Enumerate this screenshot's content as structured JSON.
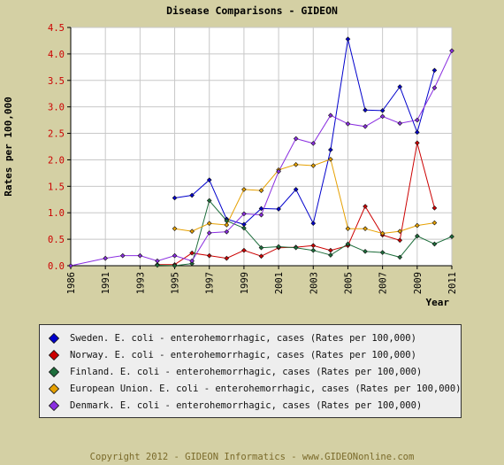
{
  "chart_data": {
    "type": "line",
    "title": "Disease Comparisons - GIDEON",
    "xlabel": "Year",
    "ylabel": "Rates per 100,000",
    "xlim": [
      1986,
      2011
    ],
    "ylim": [
      0,
      4.5
    ],
    "x_ticks": [
      "1986",
      "1991",
      "1993",
      "1995",
      "1997",
      "1999",
      "2001",
      "2003",
      "2005",
      "2007",
      "2009",
      "2011"
    ],
    "y_ticks": [
      "0.0",
      "0.5",
      "1.0",
      "1.5",
      "2.0",
      "2.5",
      "3.0",
      "3.5",
      "4.0",
      "4.5"
    ],
    "grid": true,
    "legend_position": "bottom",
    "series": [
      {
        "name": "Sweden. E. coli - enterohemorrhagic, cases (Rates per 100,000)",
        "color": "#0000cc",
        "points": [
          [
            1995,
            1.28
          ],
          [
            1996,
            1.33
          ],
          [
            1997,
            1.62
          ],
          [
            1998,
            0.88
          ],
          [
            1999,
            0.78
          ],
          [
            2000,
            1.08
          ],
          [
            2001,
            1.07
          ],
          [
            2002,
            1.44
          ],
          [
            2003,
            0.8
          ],
          [
            2004,
            2.19
          ],
          [
            2005,
            4.28
          ],
          [
            2006,
            2.94
          ],
          [
            2007,
            2.93
          ],
          [
            2008,
            3.38
          ],
          [
            2009,
            2.52
          ],
          [
            2010,
            3.69
          ]
        ]
      },
      {
        "name": "Norway. E. coli - enterohemorrhagic, cases (Rates per 100,000)",
        "color": "#cc0000",
        "points": [
          [
            1994,
            0.02
          ],
          [
            1995,
            0.02
          ],
          [
            1996,
            0.24
          ],
          [
            1997,
            0.19
          ],
          [
            1998,
            0.14
          ],
          [
            1999,
            0.29
          ],
          [
            2000,
            0.18
          ],
          [
            2001,
            0.34
          ],
          [
            2002,
            0.35
          ],
          [
            2003,
            0.38
          ],
          [
            2004,
            0.29
          ],
          [
            2005,
            0.38
          ],
          [
            2006,
            1.12
          ],
          [
            2007,
            0.58
          ],
          [
            2008,
            0.48
          ],
          [
            2009,
            2.32
          ],
          [
            2010,
            1.09
          ]
        ]
      },
      {
        "name": "Finland. E. coli - enterohemorrhagic, cases (Rates per 100,000)",
        "color": "#1e6e3c",
        "points": [
          [
            1994,
            0.01
          ],
          [
            1995,
            0.0
          ],
          [
            1996,
            0.04
          ],
          [
            1997,
            1.23
          ],
          [
            1998,
            0.85
          ],
          [
            1999,
            0.71
          ],
          [
            2000,
            0.34
          ],
          [
            2001,
            0.36
          ],
          [
            2002,
            0.34
          ],
          [
            2003,
            0.29
          ],
          [
            2004,
            0.2
          ],
          [
            2005,
            0.41
          ],
          [
            2006,
            0.27
          ],
          [
            2007,
            0.25
          ],
          [
            2008,
            0.16
          ],
          [
            2009,
            0.56
          ],
          [
            2010,
            0.41
          ],
          [
            2011,
            0.55
          ]
        ]
      },
      {
        "name": "European Union. E. coli - enterohemorrhagic, cases (Rates per 100,000)",
        "color": "#e6a000",
        "points": [
          [
            1995,
            0.7
          ],
          [
            1996,
            0.65
          ],
          [
            1997,
            0.8
          ],
          [
            1998,
            0.77
          ],
          [
            1999,
            1.44
          ],
          [
            2000,
            1.42
          ],
          [
            2001,
            1.81
          ],
          [
            2002,
            1.91
          ],
          [
            2003,
            1.89
          ],
          [
            2004,
            2.01
          ],
          [
            2005,
            0.7
          ],
          [
            2006,
            0.7
          ],
          [
            2007,
            0.61
          ],
          [
            2008,
            0.65
          ],
          [
            2009,
            0.76
          ],
          [
            2010,
            0.81
          ]
        ]
      },
      {
        "name": "Denmark. E. coli - enterohemorrhagic, cases (Rates per 100,000)",
        "color": "#8a2ee0",
        "points": [
          [
            1986,
            0.0
          ],
          [
            1991,
            0.14
          ],
          [
            1992,
            0.19
          ],
          [
            1993,
            0.19
          ],
          [
            1994,
            0.09
          ],
          [
            1995,
            0.19
          ],
          [
            1996,
            0.09
          ],
          [
            1997,
            0.62
          ],
          [
            1998,
            0.64
          ],
          [
            1999,
            0.98
          ],
          [
            2000,
            0.96
          ],
          [
            2001,
            1.78
          ],
          [
            2002,
            2.4
          ],
          [
            2003,
            2.31
          ],
          [
            2004,
            2.84
          ],
          [
            2005,
            2.68
          ],
          [
            2006,
            2.63
          ],
          [
            2007,
            2.82
          ],
          [
            2008,
            2.69
          ],
          [
            2009,
            2.75
          ],
          [
            2010,
            3.36
          ],
          [
            2011,
            4.06
          ]
        ]
      }
    ]
  },
  "footer": "Copyright 2012 - GIDEON Informatics - www.GIDEONonline.com"
}
